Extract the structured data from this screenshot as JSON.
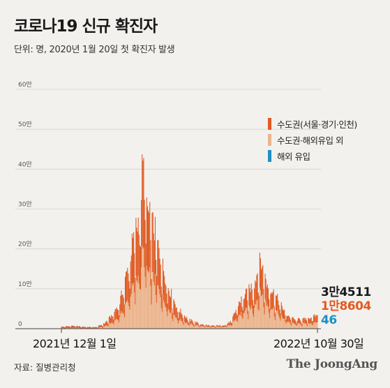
{
  "title": "코로나19 신규 확진자",
  "subtitle": "단위: 명, 2020년 1월 20일 첫 확진자 발생",
  "source": "자료: 질병관리청",
  "brand": "The JoongAng",
  "colors": {
    "metro": "#e05a22",
    "nonmetro": "#ebb48c",
    "overseas": "#1e8fc4",
    "background": "#f2f1ee",
    "grid": "#d4d2cc"
  },
  "last_values": {
    "total": "3만4511",
    "metro": "1만8604",
    "overseas": "46"
  },
  "chart_data": {
    "type": "bar",
    "stacked": true,
    "x_start": "2021-12-01",
    "x_end": "2022-10-30",
    "x_tick_labels": [
      "2021년 12월 1일",
      "2022년 10월 30일"
    ],
    "y_ticks": [
      0,
      100000,
      200000,
      300000,
      400000,
      500000,
      600000
    ],
    "y_tick_labels": [
      "0",
      "10만",
      "20만",
      "30만",
      "40만",
      "50만",
      "60만"
    ],
    "ylim": [
      0,
      600000
    ],
    "grid": true,
    "legend_position": "top-right",
    "legend": [
      "수도권(서울·경기·인천)",
      "수도권·해외유입 외",
      "해외 유입"
    ],
    "series": [
      {
        "name": "수도권(서울·경기·인천)",
        "color": "#e05a22",
        "points": [
          [
            "2021-12-01",
            3800
          ],
          [
            "2021-12-15",
            5500
          ],
          [
            "2022-01-01",
            3300
          ],
          [
            "2022-01-15",
            2500
          ],
          [
            "2022-01-26",
            7800
          ],
          [
            "2022-02-05",
            19000
          ],
          [
            "2022-02-15",
            36000
          ],
          [
            "2022-02-25",
            80000
          ],
          [
            "2022-03-05",
            122000
          ],
          [
            "2022-03-12",
            148000
          ],
          [
            "2022-03-17",
            221000
          ],
          [
            "2022-03-24",
            150000
          ],
          [
            "2022-04-01",
            130000
          ],
          [
            "2022-04-10",
            88000
          ],
          [
            "2022-04-20",
            52000
          ],
          [
            "2022-05-01",
            26000
          ],
          [
            "2022-05-15",
            11000
          ],
          [
            "2022-06-01",
            5000
          ],
          [
            "2022-06-15",
            3500
          ],
          [
            "2022-07-01",
            4300
          ],
          [
            "2022-07-10",
            9000
          ],
          [
            "2022-07-20",
            33000
          ],
          [
            "2022-08-01",
            45000
          ],
          [
            "2022-08-10",
            60000
          ],
          [
            "2022-08-17",
            80000
          ],
          [
            "2022-08-25",
            53000
          ],
          [
            "2022-09-05",
            40000
          ],
          [
            "2022-09-20",
            17000
          ],
          [
            "2022-10-01",
            11000
          ],
          [
            "2022-10-15",
            12000
          ],
          [
            "2022-10-30",
            18604
          ]
        ]
      },
      {
        "name": "수도권·해외유입 외",
        "color": "#ebb48c",
        "points": [
          [
            "2021-12-01",
            1200
          ],
          [
            "2021-12-15",
            2000
          ],
          [
            "2022-01-01",
            1300
          ],
          [
            "2022-01-15",
            1200
          ],
          [
            "2022-01-26",
            5500
          ],
          [
            "2022-02-05",
            16000
          ],
          [
            "2022-02-15",
            32000
          ],
          [
            "2022-02-25",
            70000
          ],
          [
            "2022-03-05",
            112000
          ],
          [
            "2022-03-12",
            135000
          ],
          [
            "2022-03-17",
            200000
          ],
          [
            "2022-03-24",
            140000
          ],
          [
            "2022-04-01",
            125000
          ],
          [
            "2022-04-10",
            85000
          ],
          [
            "2022-04-20",
            50000
          ],
          [
            "2022-05-01",
            26000
          ],
          [
            "2022-05-15",
            13000
          ],
          [
            "2022-06-01",
            6000
          ],
          [
            "2022-06-15",
            4000
          ],
          [
            "2022-07-01",
            5000
          ],
          [
            "2022-07-10",
            10000
          ],
          [
            "2022-07-20",
            35000
          ],
          [
            "2022-08-01",
            50000
          ],
          [
            "2022-08-10",
            63000
          ],
          [
            "2022-08-17",
            96000
          ],
          [
            "2022-08-25",
            62000
          ],
          [
            "2022-09-05",
            47000
          ],
          [
            "2022-09-20",
            19000
          ],
          [
            "2022-10-01",
            12000
          ],
          [
            "2022-10-15",
            13000
          ],
          [
            "2022-10-30",
            15861
          ]
        ]
      },
      {
        "name": "해외 유입",
        "color": "#1e8fc4",
        "points": [
          [
            "2021-12-01",
            30
          ],
          [
            "2022-01-15",
            300
          ],
          [
            "2022-03-17",
            60
          ],
          [
            "2022-07-20",
            120
          ],
          [
            "2022-08-17",
            100
          ],
          [
            "2022-10-30",
            46
          ]
        ]
      }
    ]
  }
}
